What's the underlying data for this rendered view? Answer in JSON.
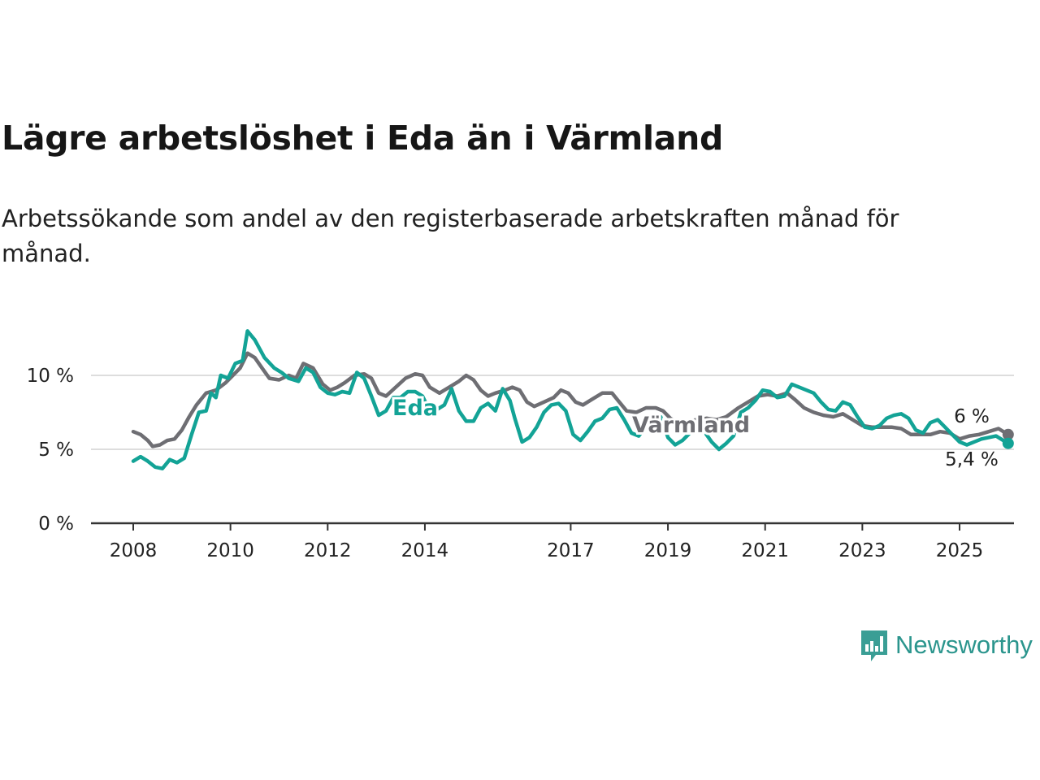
{
  "title": "Lägre arbetslöshet i Eda än i Värmland",
  "subtitle": "Arbetssökande som andel av den registerbaserade arbetskraften månad för månad.",
  "colors": {
    "eda": "#13a396",
    "varmland": "#6e6e73",
    "axis": "#333333",
    "grid": "#dddddd"
  },
  "brand": {
    "name": "Newsworthy",
    "icon": "bar-chart-speech-bubble-icon",
    "color": "#2b958d"
  },
  "chart_data": {
    "type": "line",
    "title": "Lägre arbetslöshet i Eda än i Värmland",
    "subtitle": "Arbetssökande som andel av den registerbaserade arbetskraften månad för månad.",
    "ylim": [
      0,
      12
    ],
    "yticks": [
      {
        "value": 0,
        "label": "0 %"
      },
      {
        "value": 5,
        "label": "5 %"
      },
      {
        "value": 10,
        "label": "10 %"
      }
    ],
    "xlim": [
      2007.7,
      2026.1
    ],
    "xticks": [
      "2008",
      "2010",
      "2012",
      "2014",
      "2017",
      "2019",
      "2021",
      "2023",
      "2025"
    ],
    "grid": true,
    "legend": "inline labels",
    "series": [
      {
        "name": "Eda",
        "key": "eda",
        "end_label": "5,4 %",
        "points": [
          [
            2008.0,
            4.2
          ],
          [
            2008.15,
            4.5
          ],
          [
            2008.3,
            4.2
          ],
          [
            2008.45,
            3.8
          ],
          [
            2008.6,
            3.7
          ],
          [
            2008.75,
            4.3
          ],
          [
            2008.9,
            4.1
          ],
          [
            2009.05,
            4.4
          ],
          [
            2009.2,
            6.0
          ],
          [
            2009.35,
            7.5
          ],
          [
            2009.5,
            7.6
          ],
          [
            2009.6,
            8.8
          ],
          [
            2009.7,
            8.5
          ],
          [
            2009.8,
            10.0
          ],
          [
            2009.95,
            9.8
          ],
          [
            2010.1,
            10.8
          ],
          [
            2010.25,
            11.0
          ],
          [
            2010.35,
            13.0
          ],
          [
            2010.5,
            12.4
          ],
          [
            2010.7,
            11.2
          ],
          [
            2010.9,
            10.5
          ],
          [
            2011.05,
            10.2
          ],
          [
            2011.2,
            9.8
          ],
          [
            2011.4,
            9.6
          ],
          [
            2011.55,
            10.5
          ],
          [
            2011.7,
            10.2
          ],
          [
            2011.85,
            9.2
          ],
          [
            2012.0,
            8.8
          ],
          [
            2012.15,
            8.7
          ],
          [
            2012.3,
            8.9
          ],
          [
            2012.45,
            8.8
          ],
          [
            2012.6,
            10.2
          ],
          [
            2012.75,
            9.8
          ],
          [
            2012.9,
            8.6
          ],
          [
            2013.05,
            7.3
          ],
          [
            2013.2,
            7.6
          ],
          [
            2013.35,
            8.5
          ],
          [
            2013.5,
            8.5
          ],
          [
            2013.65,
            8.9
          ],
          [
            2013.8,
            8.9
          ],
          [
            2013.95,
            8.6
          ],
          [
            2014.1,
            7.6
          ],
          [
            2014.25,
            7.7
          ],
          [
            2014.4,
            8.0
          ],
          [
            2014.55,
            9.1
          ],
          [
            2014.7,
            7.6
          ],
          [
            2014.85,
            6.9
          ],
          [
            2015.0,
            6.9
          ],
          [
            2015.15,
            7.8
          ],
          [
            2015.3,
            8.1
          ],
          [
            2015.45,
            7.6
          ],
          [
            2015.6,
            9.1
          ],
          [
            2015.75,
            8.3
          ],
          [
            2015.85,
            7.1
          ],
          [
            2016.0,
            5.5
          ],
          [
            2016.15,
            5.8
          ],
          [
            2016.3,
            6.5
          ],
          [
            2016.45,
            7.5
          ],
          [
            2016.6,
            8.0
          ],
          [
            2016.75,
            8.1
          ],
          [
            2016.9,
            7.6
          ],
          [
            2017.05,
            6.0
          ],
          [
            2017.2,
            5.6
          ],
          [
            2017.35,
            6.2
          ],
          [
            2017.5,
            6.9
          ],
          [
            2017.65,
            7.1
          ],
          [
            2017.8,
            7.7
          ],
          [
            2017.95,
            7.8
          ],
          [
            2018.1,
            7.0
          ],
          [
            2018.25,
            6.1
          ],
          [
            2018.4,
            5.9
          ],
          [
            2018.55,
            6.6
          ],
          [
            2018.7,
            7.3
          ],
          [
            2018.85,
            7.2
          ],
          [
            2019.0,
            5.8
          ],
          [
            2019.15,
            5.3
          ],
          [
            2019.3,
            5.6
          ],
          [
            2019.45,
            6.1
          ],
          [
            2019.6,
            6.6
          ],
          [
            2019.75,
            6.2
          ],
          [
            2019.9,
            5.5
          ],
          [
            2020.05,
            5.0
          ],
          [
            2020.2,
            5.4
          ],
          [
            2020.35,
            5.9
          ],
          [
            2020.5,
            7.5
          ],
          [
            2020.65,
            7.8
          ],
          [
            2020.8,
            8.3
          ],
          [
            2020.95,
            9.0
          ],
          [
            2021.1,
            8.9
          ],
          [
            2021.25,
            8.5
          ],
          [
            2021.4,
            8.6
          ],
          [
            2021.55,
            9.4
          ],
          [
            2021.7,
            9.2
          ],
          [
            2021.85,
            9.0
          ],
          [
            2022.0,
            8.8
          ],
          [
            2022.15,
            8.2
          ],
          [
            2022.3,
            7.7
          ],
          [
            2022.45,
            7.6
          ],
          [
            2022.6,
            8.2
          ],
          [
            2022.75,
            8.0
          ],
          [
            2022.9,
            7.2
          ],
          [
            2023.05,
            6.5
          ],
          [
            2023.2,
            6.4
          ],
          [
            2023.35,
            6.6
          ],
          [
            2023.5,
            7.1
          ],
          [
            2023.65,
            7.3
          ],
          [
            2023.8,
            7.4
          ],
          [
            2023.95,
            7.1
          ],
          [
            2024.1,
            6.3
          ],
          [
            2024.25,
            6.1
          ],
          [
            2024.4,
            6.8
          ],
          [
            2024.55,
            7.0
          ],
          [
            2024.7,
            6.5
          ],
          [
            2024.85,
            6.0
          ],
          [
            2025.0,
            5.5
          ],
          [
            2025.15,
            5.3
          ],
          [
            2025.3,
            5.5
          ],
          [
            2025.45,
            5.7
          ],
          [
            2025.6,
            5.8
          ],
          [
            2025.75,
            5.9
          ],
          [
            2025.9,
            5.6
          ],
          [
            2026.0,
            5.4
          ]
        ]
      },
      {
        "name": "Värmland",
        "key": "varmland",
        "end_label": "6 %",
        "points": [
          [
            2008.0,
            6.2
          ],
          [
            2008.15,
            6.0
          ],
          [
            2008.3,
            5.6
          ],
          [
            2008.4,
            5.2
          ],
          [
            2008.55,
            5.3
          ],
          [
            2008.7,
            5.6
          ],
          [
            2008.85,
            5.7
          ],
          [
            2009.0,
            6.3
          ],
          [
            2009.15,
            7.2
          ],
          [
            2009.3,
            8.0
          ],
          [
            2009.5,
            8.8
          ],
          [
            2009.7,
            9.0
          ],
          [
            2009.9,
            9.5
          ],
          [
            2010.05,
            10.0
          ],
          [
            2010.2,
            10.5
          ],
          [
            2010.35,
            11.5
          ],
          [
            2010.5,
            11.2
          ],
          [
            2010.65,
            10.5
          ],
          [
            2010.8,
            9.8
          ],
          [
            2011.0,
            9.7
          ],
          [
            2011.2,
            10.0
          ],
          [
            2011.35,
            9.8
          ],
          [
            2011.5,
            10.8
          ],
          [
            2011.7,
            10.5
          ],
          [
            2011.9,
            9.4
          ],
          [
            2012.05,
            9.0
          ],
          [
            2012.2,
            9.2
          ],
          [
            2012.35,
            9.5
          ],
          [
            2012.55,
            10.0
          ],
          [
            2012.75,
            10.1
          ],
          [
            2012.9,
            9.8
          ],
          [
            2013.05,
            8.8
          ],
          [
            2013.2,
            8.6
          ],
          [
            2013.4,
            9.2
          ],
          [
            2013.6,
            9.8
          ],
          [
            2013.8,
            10.1
          ],
          [
            2013.95,
            10.0
          ],
          [
            2014.1,
            9.2
          ],
          [
            2014.3,
            8.8
          ],
          [
            2014.5,
            9.2
          ],
          [
            2014.7,
            9.6
          ],
          [
            2014.85,
            10.0
          ],
          [
            2015.0,
            9.7
          ],
          [
            2015.15,
            9.0
          ],
          [
            2015.3,
            8.6
          ],
          [
            2015.45,
            8.8
          ],
          [
            2015.65,
            9.0
          ],
          [
            2015.8,
            9.2
          ],
          [
            2015.95,
            9.0
          ],
          [
            2016.1,
            8.2
          ],
          [
            2016.25,
            7.9
          ],
          [
            2016.45,
            8.2
          ],
          [
            2016.65,
            8.5
          ],
          [
            2016.8,
            9.0
          ],
          [
            2016.95,
            8.8
          ],
          [
            2017.1,
            8.2
          ],
          [
            2017.25,
            8.0
          ],
          [
            2017.45,
            8.4
          ],
          [
            2017.65,
            8.8
          ],
          [
            2017.85,
            8.8
          ],
          [
            2018.0,
            8.2
          ],
          [
            2018.15,
            7.6
          ],
          [
            2018.35,
            7.5
          ],
          [
            2018.55,
            7.8
          ],
          [
            2018.75,
            7.8
          ],
          [
            2018.9,
            7.6
          ],
          [
            2019.05,
            7.1
          ],
          [
            2019.2,
            6.8
          ],
          [
            2019.4,
            6.9
          ],
          [
            2019.6,
            7.0
          ],
          [
            2019.8,
            7.1
          ],
          [
            2020.0,
            7.0
          ],
          [
            2020.2,
            7.2
          ],
          [
            2020.45,
            7.8
          ],
          [
            2020.65,
            8.2
          ],
          [
            2020.85,
            8.6
          ],
          [
            2021.05,
            8.7
          ],
          [
            2021.25,
            8.6
          ],
          [
            2021.45,
            8.8
          ],
          [
            2021.6,
            8.4
          ],
          [
            2021.8,
            7.8
          ],
          [
            2022.0,
            7.5
          ],
          [
            2022.2,
            7.3
          ],
          [
            2022.4,
            7.2
          ],
          [
            2022.6,
            7.4
          ],
          [
            2022.8,
            7.0
          ],
          [
            2023.0,
            6.6
          ],
          [
            2023.2,
            6.5
          ],
          [
            2023.4,
            6.5
          ],
          [
            2023.6,
            6.5
          ],
          [
            2023.8,
            6.4
          ],
          [
            2024.0,
            6.0
          ],
          [
            2024.2,
            6.0
          ],
          [
            2024.4,
            6.0
          ],
          [
            2024.6,
            6.2
          ],
          [
            2024.8,
            6.1
          ],
          [
            2025.0,
            5.7
          ],
          [
            2025.2,
            5.9
          ],
          [
            2025.4,
            6.0
          ],
          [
            2025.6,
            6.2
          ],
          [
            2025.8,
            6.4
          ],
          [
            2026.0,
            6.0
          ]
        ]
      }
    ]
  }
}
